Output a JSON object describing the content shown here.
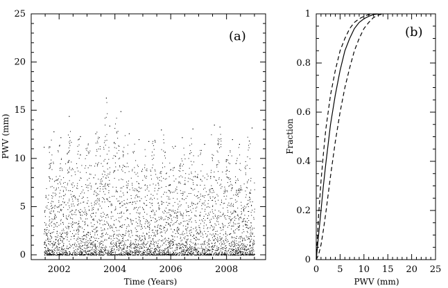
{
  "chart_data": [
    {
      "type": "scatter",
      "panel_label": "(a)",
      "xlabel": "Time (Years)",
      "ylabel": "PWV (mm)",
      "xlim": [
        2001.0,
        2009.4
      ],
      "ylim": [
        -0.5,
        25
      ],
      "x_ticks": [
        2002,
        2004,
        2006,
        2008
      ],
      "y_ticks": [
        0,
        5,
        10,
        15,
        20,
        25
      ],
      "grid": false,
      "data_range": {
        "x": [
          2001.45,
          2009.0
        ],
        "y": [
          0,
          16.3
        ]
      },
      "peak_values": [
        {
          "x": 2001.45,
          "y": 11.2
        },
        {
          "x": 2001.8,
          "y": 12.8
        },
        {
          "x": 2002.05,
          "y": 12.2
        },
        {
          "x": 2002.35,
          "y": 14.4
        },
        {
          "x": 2002.75,
          "y": 12.3
        },
        {
          "x": 2003.3,
          "y": 12.6
        },
        {
          "x": 2003.68,
          "y": 16.3
        },
        {
          "x": 2003.8,
          "y": 13.4
        },
        {
          "x": 2004.2,
          "y": 14.9
        },
        {
          "x": 2004.5,
          "y": 12.6
        },
        {
          "x": 2004.85,
          "y": 12.0
        },
        {
          "x": 2005.2,
          "y": 11.8
        },
        {
          "x": 2005.65,
          "y": 13.0
        },
        {
          "x": 2006.15,
          "y": 11.3
        },
        {
          "x": 2006.4,
          "y": 12.2
        },
        {
          "x": 2006.78,
          "y": 13.1
        },
        {
          "x": 2007.2,
          "y": 11.5
        },
        {
          "x": 2007.55,
          "y": 13.5
        },
        {
          "x": 2007.75,
          "y": 13.3
        },
        {
          "x": 2008.2,
          "y": 12.0
        },
        {
          "x": 2008.45,
          "y": 11.5
        },
        {
          "x": 2008.9,
          "y": 13.2
        }
      ]
    },
    {
      "type": "line",
      "panel_label": "(b)",
      "xlabel": "PWV (mm)",
      "ylabel": "Fraction",
      "xlim": [
        0,
        25
      ],
      "ylim": [
        0,
        1
      ],
      "x_ticks": [
        0,
        5,
        10,
        15,
        20,
        25
      ],
      "y_ticks": [
        0,
        0.2,
        0.4,
        0.6,
        0.8,
        1
      ],
      "grid": false,
      "series": [
        {
          "style": "dashed",
          "x": [
            0,
            0.5,
            1,
            1.5,
            2,
            3,
            4,
            5,
            6,
            7,
            8,
            9,
            10,
            11,
            12
          ],
          "y": [
            0,
            0.18,
            0.32,
            0.43,
            0.53,
            0.67,
            0.77,
            0.85,
            0.9,
            0.94,
            0.965,
            0.98,
            0.99,
            0.997,
            1.0
          ]
        },
        {
          "style": "solid",
          "x": [
            0,
            0.5,
            1,
            1.5,
            2,
            3,
            4,
            5,
            6,
            7,
            8,
            9,
            10,
            11,
            12,
            13
          ],
          "y": [
            0,
            0.1,
            0.2,
            0.3,
            0.39,
            0.55,
            0.67,
            0.77,
            0.85,
            0.9,
            0.94,
            0.965,
            0.98,
            0.99,
            0.997,
            1.0
          ]
        },
        {
          "style": "dashed",
          "x": [
            0,
            0.5,
            1,
            1.5,
            2,
            3,
            4,
            5,
            6,
            7,
            8,
            9,
            10,
            11,
            12,
            13,
            14
          ],
          "y": [
            0,
            0.02,
            0.06,
            0.12,
            0.19,
            0.34,
            0.48,
            0.6,
            0.7,
            0.78,
            0.85,
            0.9,
            0.94,
            0.965,
            0.985,
            0.995,
            1.0
          ]
        }
      ]
    }
  ]
}
